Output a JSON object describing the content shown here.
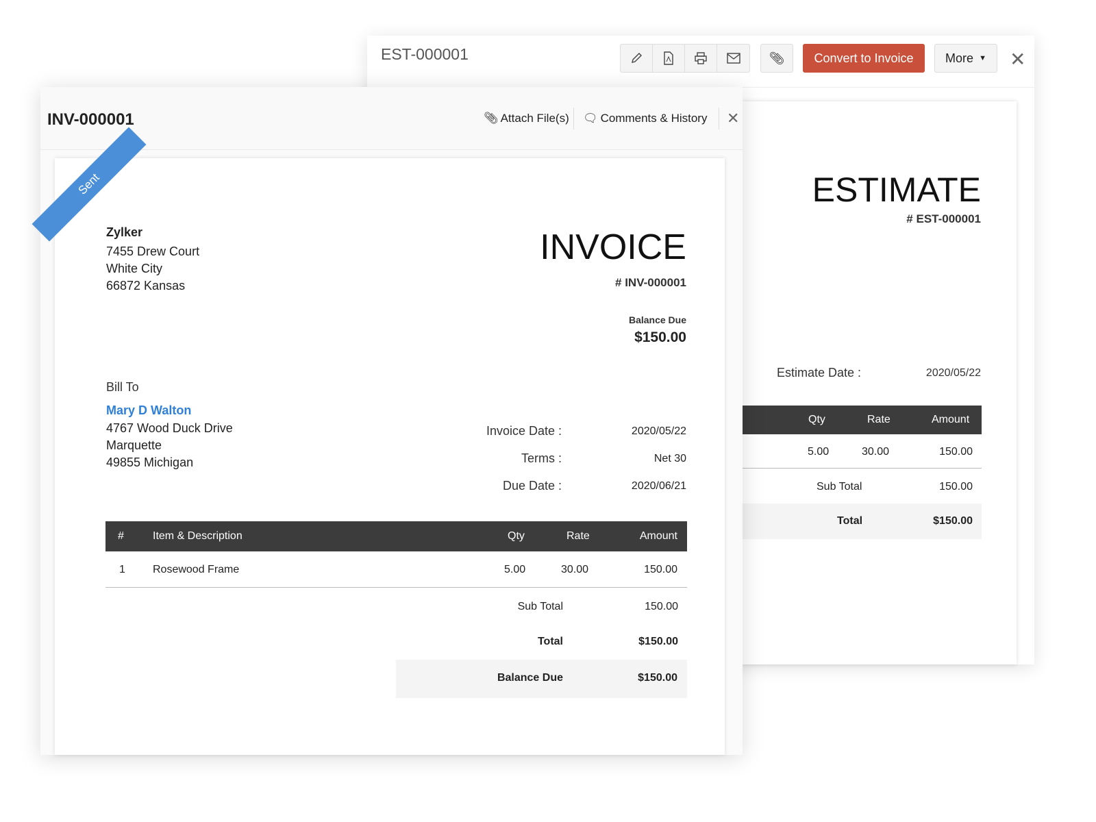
{
  "estimate": {
    "title": "EST-000001",
    "convert_label": "Convert to Invoice",
    "more_label": "More",
    "heading": "ESTIMATE",
    "number": "# EST-000001",
    "date_label": "Estimate Date :",
    "date": "2020/05/22",
    "columns": [
      "Qty",
      "Rate",
      "Amount"
    ],
    "row": [
      "5.00",
      "30.00",
      "150.00"
    ],
    "sub_total_label": "Sub Total",
    "sub_total": "150.00",
    "total_label": "Total",
    "total": "$150.00"
  },
  "invoice": {
    "title": "INV-000001",
    "attach_label": "Attach File(s)",
    "comments_label": "Comments & History",
    "ribbon": "Sent",
    "company": "Zylker",
    "company_address": [
      "7455 Drew Court",
      "White City",
      "66872 Kansas"
    ],
    "heading": "INVOICE",
    "number": "# INV-000001",
    "balance_due_label": "Balance Due",
    "balance_due": "$150.00",
    "bill_to_label": "Bill To",
    "customer": "Mary D Walton",
    "customer_address": [
      "4767 Wood Duck Drive",
      "Marquette",
      "49855 Michigan"
    ],
    "invoice_date_label": "Invoice Date :",
    "invoice_date": "2020/05/22",
    "terms_label": "Terms :",
    "terms": "Net 30",
    "due_date_label": "Due Date :",
    "due_date": "2020/06/21",
    "columns": [
      "#",
      "Item & Description",
      "Qty",
      "Rate",
      "Amount"
    ],
    "items": [
      {
        "no": "1",
        "item": "Rosewood Frame",
        "qty": "5.00",
        "rate": "30.00",
        "amount": "150.00"
      }
    ],
    "sub_total_label": "Sub Total",
    "sub_total": "150.00",
    "total_label": "Total",
    "total": "$150.00",
    "balance_label": "Balance Due",
    "balance": "$150.00"
  },
  "colors": {
    "accent": "#c9513b",
    "ribbon": "#4a8fd8",
    "link": "#2f80d6",
    "table_header": "#3c3c3c"
  }
}
